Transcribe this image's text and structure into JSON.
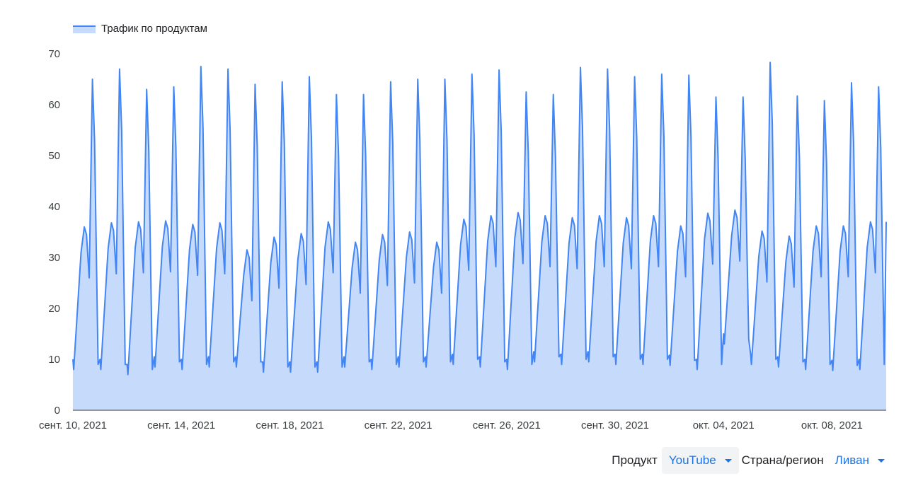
{
  "legend": {
    "label": "Трафик по продуктам"
  },
  "controls": {
    "product_label": "Продукт",
    "product_value": "YouTube",
    "region_label": "Страна/регион",
    "region_value": "Ливан"
  },
  "colors": {
    "line": "#4285f4",
    "area": "#c6dafc",
    "accent": "#1a73e8"
  },
  "chart_data": {
    "type": "area",
    "title": "",
    "xlabel": "",
    "ylabel": "",
    "ylim": [
      0,
      70
    ],
    "yticks": [
      0,
      10,
      20,
      30,
      40,
      50,
      60,
      70
    ],
    "x_start": "2021-09-10",
    "x_end": "2021-10-10",
    "xticks": [
      {
        "date": "2021-09-10",
        "label": "сент. 10, 2021"
      },
      {
        "date": "2021-09-14",
        "label": "сент. 14, 2021"
      },
      {
        "date": "2021-09-18",
        "label": "сент. 18, 2021"
      },
      {
        "date": "2021-09-22",
        "label": "сент. 22, 2021"
      },
      {
        "date": "2021-09-26",
        "label": "сент. 26, 2021"
      },
      {
        "date": "2021-09-30",
        "label": "сент. 30, 2021"
      },
      {
        "date": "2021-10-04",
        "label": "окт. 04, 2021"
      },
      {
        "date": "2021-10-08",
        "label": "окт. 08, 2021"
      }
    ],
    "series": [
      {
        "name": "Трафик по продуктам",
        "peaks": [
          65,
          67,
          63,
          63.5,
          67.5,
          67,
          64,
          64.5,
          65.5,
          62,
          62,
          64.5,
          65,
          65,
          66,
          66.8,
          62.5,
          62,
          67.3,
          67,
          65.5,
          66,
          65.8,
          61.5,
          61.5,
          68.3,
          61.7,
          60.8,
          64.3,
          63.5
        ],
        "troughs": [
          8,
          8,
          7,
          8.5,
          8,
          8.5,
          8.5,
          7.5,
          7.5,
          7.5,
          8.5,
          8,
          8.5,
          8.5,
          9,
          8.5,
          8,
          9.5,
          9,
          9.5,
          9,
          9,
          8.8,
          8,
          13,
          9,
          8.5,
          8,
          7.8,
          8
        ],
        "shoulders": [
          36,
          36.8,
          37,
          37.2,
          36.5,
          36.8,
          31.5,
          34,
          34.7,
          37,
          33,
          34.5,
          35,
          33,
          37.5,
          38.2,
          38.8,
          38.2,
          37.8,
          38.2,
          37.8,
          38.2,
          36.2,
          38.7,
          39.3,
          35.2,
          34.2,
          36.2,
          36.2,
          37
        ]
      }
    ]
  }
}
